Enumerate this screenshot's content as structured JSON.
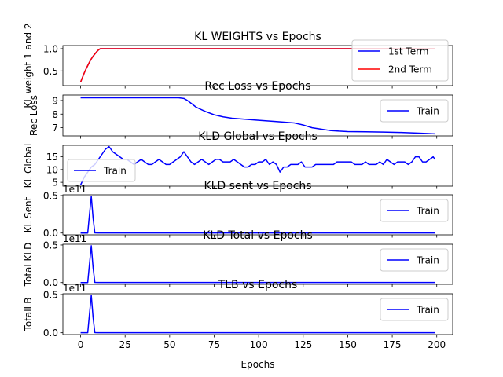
{
  "chart_data": [
    {
      "type": "line",
      "title": "KL WEIGHTS vs Epochs",
      "ylabel": "KL weight 1 and 2",
      "xlim": [
        -9.95,
        208.95
      ],
      "ylim": [
        0.17,
        1.07
      ],
      "yticks": [
        0.5,
        1.0
      ],
      "ytick_labels": [
        "0.5",
        "1.0"
      ],
      "legend_position": "lower-right",
      "series": [
        {
          "name": "1st Term",
          "color": "#0000ff",
          "x": [
            0,
            1,
            2,
            3,
            4,
            5,
            6,
            7,
            8,
            9,
            10,
            11,
            12,
            199
          ],
          "y": [
            0.25,
            0.35,
            0.45,
            0.54,
            0.62,
            0.7,
            0.77,
            0.83,
            0.88,
            0.93,
            0.97,
            1.0,
            1.0,
            1.0
          ]
        },
        {
          "name": "2nd Term",
          "color": "#ff0000",
          "x": [
            0,
            1,
            2,
            3,
            4,
            5,
            6,
            7,
            8,
            9,
            10,
            11,
            12,
            199
          ],
          "y": [
            0.25,
            0.35,
            0.45,
            0.54,
            0.62,
            0.7,
            0.77,
            0.83,
            0.88,
            0.93,
            0.97,
            1.0,
            1.0,
            1.0
          ]
        }
      ]
    },
    {
      "type": "line",
      "title": "Rec Loss vs Epochs",
      "ylabel": "Rec Loss",
      "xlim": [
        -9.95,
        208.95
      ],
      "ylim": [
        6.4,
        9.4
      ],
      "yticks": [
        7,
        8,
        9
      ],
      "ytick_labels": [
        "7",
        "8",
        "9"
      ],
      "legend_position": "upper-right",
      "series": [
        {
          "name": "Train",
          "color": "#0000ff",
          "x": [
            0,
            10,
            20,
            30,
            40,
            50,
            55,
            58,
            60,
            62,
            65,
            70,
            75,
            80,
            85,
            90,
            95,
            100,
            110,
            120,
            125,
            130,
            135,
            140,
            145,
            150,
            160,
            170,
            180,
            190,
            199
          ],
          "y": [
            9.2,
            9.2,
            9.2,
            9.2,
            9.2,
            9.2,
            9.2,
            9.15,
            9.0,
            8.8,
            8.5,
            8.2,
            7.95,
            7.8,
            7.7,
            7.65,
            7.6,
            7.55,
            7.45,
            7.35,
            7.2,
            7.0,
            6.9,
            6.8,
            6.75,
            6.72,
            6.7,
            6.68,
            6.65,
            6.6,
            6.55
          ]
        }
      ]
    },
    {
      "type": "line",
      "title": "KLD Global vs Epochs",
      "ylabel": "KL Global",
      "xlim": [
        -9.95,
        208.95
      ],
      "ylim": [
        3.5,
        19.5
      ],
      "yticks": [
        5,
        10,
        15
      ],
      "ytick_labels": [
        "5",
        "10",
        "15"
      ],
      "legend_position": "lower-left",
      "series": [
        {
          "name": "Train",
          "color": "#0000ff",
          "x": [
            0,
            2,
            4,
            6,
            8,
            10,
            12,
            14,
            16,
            18,
            20,
            22,
            24,
            26,
            28,
            30,
            32,
            34,
            36,
            38,
            40,
            42,
            44,
            46,
            48,
            50,
            52,
            54,
            56,
            58,
            60,
            62,
            64,
            66,
            68,
            70,
            72,
            74,
            76,
            78,
            80,
            82,
            84,
            86,
            88,
            90,
            92,
            94,
            96,
            98,
            100,
            102,
            104,
            106,
            108,
            110,
            112,
            114,
            116,
            118,
            120,
            122,
            124,
            126,
            128,
            130,
            132,
            134,
            136,
            138,
            140,
            142,
            144,
            146,
            148,
            150,
            152,
            154,
            156,
            158,
            160,
            162,
            164,
            166,
            168,
            170,
            172,
            174,
            176,
            178,
            180,
            182,
            184,
            186,
            188,
            190,
            192,
            194,
            196,
            198,
            199
          ],
          "y": [
            4,
            7,
            9,
            11,
            12,
            14,
            16,
            18,
            19,
            17,
            16,
            15,
            14,
            14,
            13,
            12,
            13,
            14,
            13,
            12,
            12,
            13,
            14,
            13,
            12,
            12,
            13,
            14,
            15,
            17,
            15,
            13,
            12,
            13,
            14,
            13,
            12,
            13,
            14,
            14,
            13,
            13,
            13,
            14,
            13,
            12,
            11,
            11,
            12,
            12,
            13,
            13,
            14,
            12,
            13,
            12,
            9,
            11,
            11,
            12,
            12,
            12,
            13,
            11,
            11,
            11,
            12,
            12,
            12,
            12,
            12,
            12,
            13,
            13,
            13,
            13,
            13,
            12,
            12,
            12,
            13,
            12,
            12,
            12,
            13,
            12,
            14,
            13,
            12,
            13,
            13,
            13,
            12,
            13,
            15,
            15,
            13,
            13,
            14,
            15,
            14
          ]
        }
      ]
    },
    {
      "type": "line",
      "title": "KLD sent vs Epochs",
      "ylabel": "KL Sent",
      "offset_text": "1e11",
      "xlim": [
        -9.95,
        208.95
      ],
      "ylim": [
        -0.024,
        0.51
      ],
      "yticks": [
        0.0,
        0.5
      ],
      "ytick_labels": [
        "0.0",
        "0.5"
      ],
      "legend_position": "upper-right",
      "series": [
        {
          "name": "Train",
          "color": "#0000ff",
          "x": [
            0,
            4,
            5,
            6,
            7,
            8,
            10,
            20,
            199
          ],
          "y": [
            0,
            0,
            0.25,
            0.49,
            0.2,
            0.002,
            0.001,
            0.0005,
            0.0005
          ]
        }
      ]
    },
    {
      "type": "line",
      "title": "KLD Total vs Epochs",
      "ylabel": "Total KLD",
      "offset_text": "1e11",
      "xlim": [
        -9.95,
        208.95
      ],
      "ylim": [
        -0.024,
        0.51
      ],
      "yticks": [
        0.0,
        0.5
      ],
      "ytick_labels": [
        "0.0",
        "0.5"
      ],
      "legend_position": "upper-right",
      "series": [
        {
          "name": "Train",
          "color": "#0000ff",
          "x": [
            0,
            4,
            5,
            6,
            7,
            8,
            10,
            20,
            199
          ],
          "y": [
            0,
            0,
            0.25,
            0.49,
            0.2,
            0.002,
            0.001,
            0.0005,
            0.0005
          ]
        }
      ]
    },
    {
      "type": "line",
      "title": "TLB vs Epochs",
      "ylabel": "TotalLB",
      "xlabel": "Epochs",
      "offset_text": "1e11",
      "xlim": [
        -9.95,
        208.95
      ],
      "ylim": [
        -0.024,
        0.51
      ],
      "yticks": [
        0.0,
        0.5
      ],
      "ytick_labels": [
        "0.0",
        "0.5"
      ],
      "xticks": [
        0,
        25,
        50,
        75,
        100,
        125,
        150,
        175,
        200
      ],
      "xtick_labels": [
        "0",
        "25",
        "50",
        "75",
        "100",
        "125",
        "150",
        "175",
        "200"
      ],
      "legend_position": "upper-right",
      "series": [
        {
          "name": "Train",
          "color": "#0000ff",
          "x": [
            0,
            4,
            5,
            6,
            7,
            8,
            10,
            20,
            199
          ],
          "y": [
            0,
            0,
            0.25,
            0.49,
            0.2,
            0.002,
            0.001,
            0.0005,
            0.0005
          ]
        }
      ]
    }
  ]
}
